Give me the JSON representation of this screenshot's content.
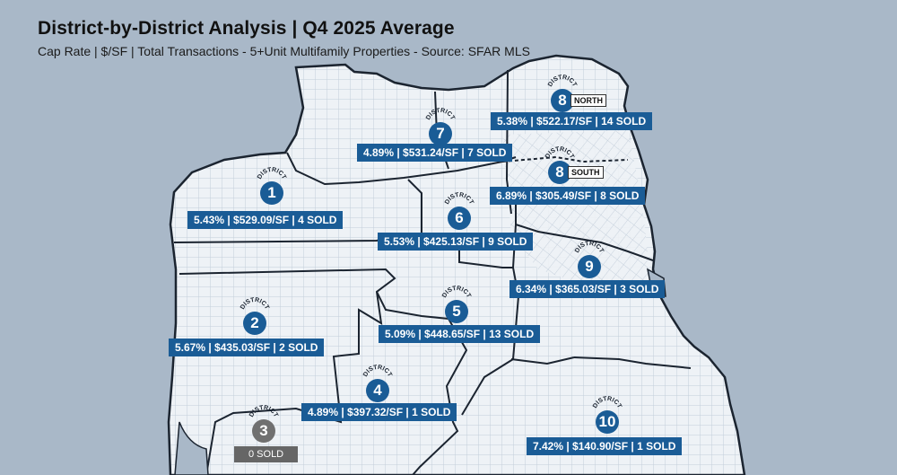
{
  "header": {
    "title": "District-by-District Analysis | Q4 2025 Average",
    "subtitle": "Cap Rate | $/SF | Total Transactions - 5+Unit Multifamily Properties - Source: SFAR MLS"
  },
  "marker_word": "DISTRICT",
  "colors": {
    "marker_blue": "#1a5c96",
    "marker_gray": "#707070",
    "map_land": "#eef2f6",
    "water": "#a9b8c8"
  },
  "districts": {
    "d1": {
      "number": "1",
      "stats": "5.43% | $529.09/SF | 4 SOLD"
    },
    "d2": {
      "number": "2",
      "stats": "5.67% | $435.03/SF | 2 SOLD"
    },
    "d3": {
      "number": "3",
      "stats": "0 SOLD"
    },
    "d4": {
      "number": "4",
      "stats": "4.89% | $397.32/SF | 1 SOLD"
    },
    "d5": {
      "number": "5",
      "stats": "5.09% | $448.65/SF | 13 SOLD"
    },
    "d6": {
      "number": "6",
      "stats": "5.53% | $425.13/SF | 9 SOLD"
    },
    "d7": {
      "number": "7",
      "stats": "4.89% | $531.24/SF | 7 SOLD"
    },
    "d8n": {
      "number": "8",
      "badge": "NORTH",
      "stats": "5.38% | $522.17/SF | 14 SOLD"
    },
    "d8s": {
      "number": "8",
      "badge": "SOUTH",
      "stats": "6.89% | $305.49/SF | 8 SOLD"
    },
    "d9": {
      "number": "9",
      "stats": "6.34% | $365.03/SF | 3 SOLD"
    },
    "d10": {
      "number": "10",
      "stats": "7.42% | $140.90/SF | 1 SOLD"
    }
  }
}
